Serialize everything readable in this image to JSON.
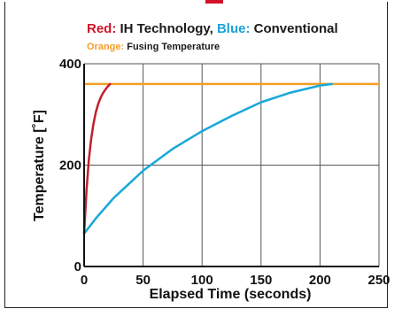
{
  "chart_data": {
    "type": "line",
    "title": {
      "red_key": "Red:",
      "red_text": " IH Technology, ",
      "blue_key": "Blue:",
      "blue_text": " Conventional"
    },
    "subtitle": {
      "orange_key": "Orange:",
      "orange_text": " Fusing Temperature"
    },
    "xlabel": "Elapsed Time (seconds)",
    "ylabel": "Temperature [˚F]",
    "xlim": [
      0,
      250
    ],
    "ylim": [
      0,
      400
    ],
    "xticks": [
      0,
      50,
      100,
      150,
      200,
      250
    ],
    "yticks": [
      0,
      200,
      400
    ],
    "grid": true,
    "colors": {
      "red": "#c01f2c",
      "blue": "#18a8d8",
      "orange": "#f49d25",
      "title_red": "#d1122a",
      "title_blue": "#1aa3d6",
      "subtitle_orange": "#f49d25"
    },
    "series": [
      {
        "key": "red",
        "x": [
          0,
          2,
          4,
          6,
          8,
          10,
          12,
          14,
          16,
          18,
          20,
          22
        ],
        "y": [
          65,
          150,
          210,
          252,
          283,
          305,
          321,
          333,
          342,
          349,
          355,
          360
        ]
      },
      {
        "key": "blue",
        "x": [
          0,
          10,
          25,
          50,
          75,
          100,
          125,
          150,
          175,
          200,
          210
        ],
        "y": [
          65,
          95,
          135,
          189,
          232,
          267,
          297,
          324,
          343,
          357,
          360
        ]
      },
      {
        "key": "orange",
        "x": [
          0,
          250
        ],
        "y": [
          360,
          360
        ]
      }
    ]
  }
}
